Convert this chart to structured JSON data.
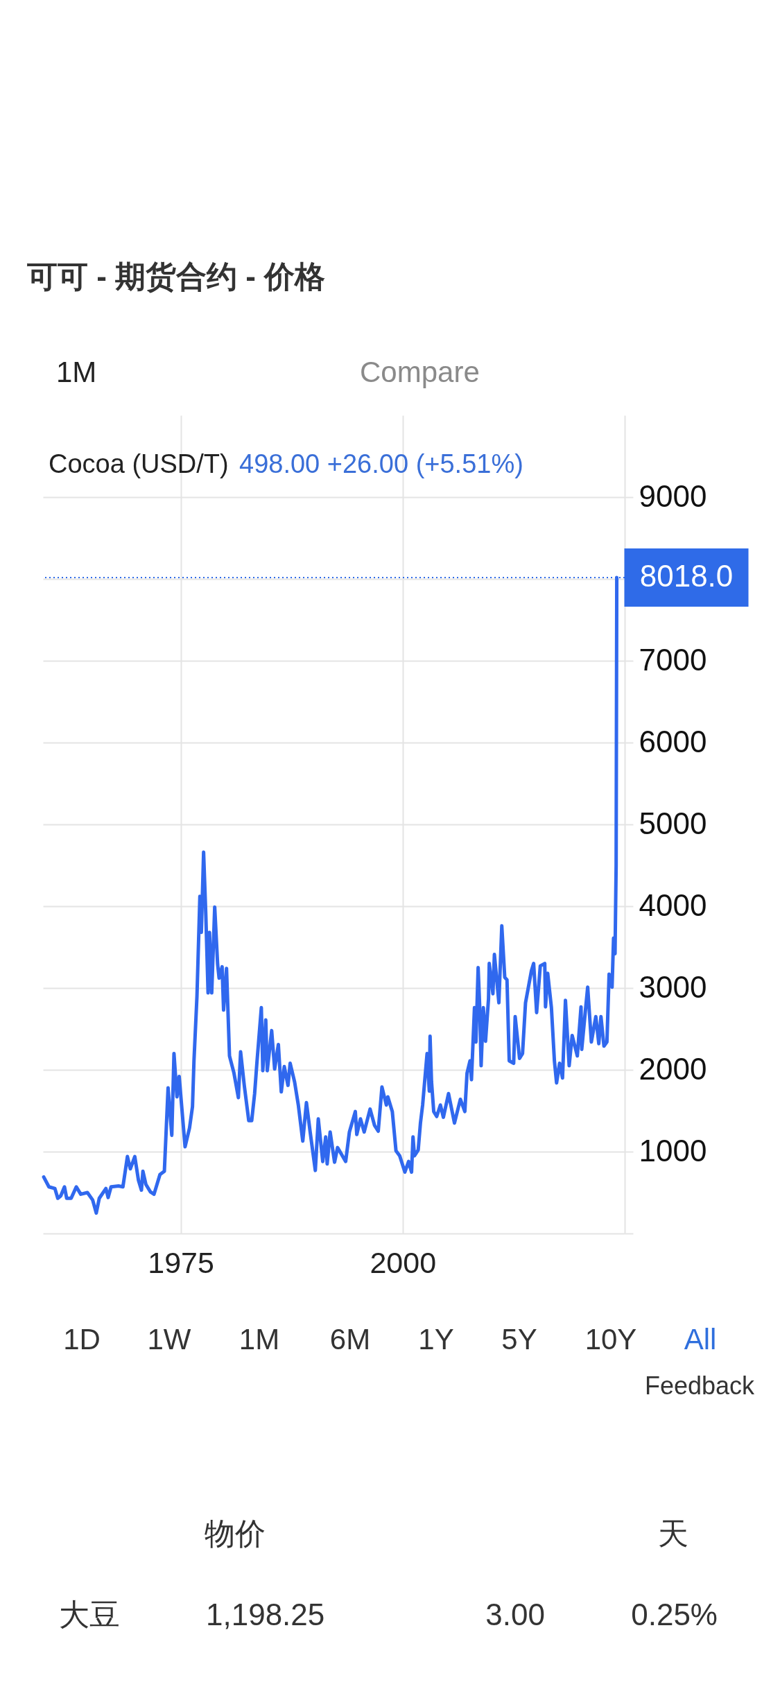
{
  "chart_data": [
    {
      "type": "line",
      "title": "可可 - 期货合约 - 价格",
      "subtitle": "Cocoa (USD/T)",
      "annotations": [
        "498.00 +26.00 (+5.51%)",
        "1M",
        "Compare",
        "1D",
        "1W",
        "1M",
        "6M",
        "1Y",
        "5Y",
        "10Y",
        "All",
        "Feedback"
      ],
      "x": [
        "1959-08",
        "1960-03",
        "1960-11",
        "1961-03",
        "1961-07",
        "1961-12",
        "1962-03",
        "1962-09",
        "1963-04",
        "1963-10",
        "1964-07",
        "1965-02",
        "1965-07",
        "1965-11",
        "1966-08",
        "1966-11",
        "1967-03",
        "1968-01",
        "1968-07",
        "1969-01",
        "1969-05",
        "1969-11",
        "1970-04",
        "1970-08",
        "1970-10",
        "1971-02",
        "1971-08",
        "1972-01",
        "1972-09",
        "1973-03",
        "1973-08",
        "1974-01",
        "1974-04",
        "1974-08",
        "1974-11",
        "1975-07",
        "1976-01",
        "1976-05",
        "1976-07",
        "1976-11",
        "1977-03",
        "1977-05",
        "1977-08",
        "1977-11",
        "1978-02",
        "1978-04",
        "1978-07",
        "1978-11",
        "1979-03",
        "1979-05",
        "1979-09",
        "1979-11",
        "1980-03",
        "1980-07",
        "1981-01",
        "1981-07",
        "1981-10",
        "1982-03",
        "1982-09",
        "1983-01",
        "1983-05",
        "1983-08",
        "1984-02",
        "1984-04",
        "1984-08",
        "1984-10",
        "1985-04",
        "1985-08",
        "1986-01",
        "1986-05",
        "1986-09",
        "1987-02",
        "1987-05",
        "1987-11",
        "1988-04",
        "1988-10",
        "1989-03",
        "1989-08",
        "1990-03",
        "1990-07",
        "1991-01",
        "1991-05",
        "1991-07",
        "1991-11",
        "1992-05",
        "1992-09",
        "1993-08",
        "1994-01",
        "1994-09",
        "1994-11",
        "1995-04",
        "1995-09",
        "1996-05",
        "1996-11",
        "1997-04",
        "1997-09",
        "1998-03",
        "1998-05",
        "1998-11",
        "1999-04",
        "1999-09",
        "2000-04",
        "2000-09",
        "2001-01",
        "2001-03",
        "2001-05",
        "2001-10",
        "2002-01",
        "2002-04",
        "2002-10",
        "2003-01",
        "2003-02",
        "2003-04",
        "2003-07",
        "2003-11",
        "2004-04",
        "2004-08",
        "2005-03",
        "2005-11",
        "2006-07",
        "2007-01",
        "2007-04",
        "2007-08",
        "2007-10",
        "2008-02",
        "2008-04",
        "2008-07",
        "2008-09",
        "2008-11",
        "2009-02",
        "2009-05",
        "2009-09",
        "2009-10",
        "2010-03",
        "2010-05",
        "2010-11",
        "2011-03",
        "2011-07",
        "2011-10",
        "2012-01",
        "2012-07",
        "2012-09",
        "2013-03",
        "2013-07",
        "2013-11",
        "2014-07",
        "2014-10",
        "2015-02",
        "2015-07",
        "2016-01",
        "2016-02",
        "2016-05",
        "2016-10",
        "2017-02",
        "2017-05",
        "2017-09",
        "2018-01",
        "2018-05",
        "2018-10",
        "2019-02",
        "2019-09",
        "2020-02",
        "2020-03",
        "2020-08",
        "2020-11",
        "2021-04",
        "2021-10",
        "2022-02",
        "2022-05",
        "2022-09",
        "2023-01",
        "2023-04",
        "2023-08",
        "2023-10",
        "2023-12",
        "2024-01-15",
        "2024-02-10"
      ],
      "series": [
        {
          "color": "#3068ee",
          "values": [
            690,
            570,
            550,
            430,
            460,
            570,
            430,
            430,
            570,
            480,
            500,
            410,
            250,
            430,
            550,
            440,
            570,
            580,
            570,
            940,
            790,
            940,
            650,
            530,
            760,
            600,
            510,
            480,
            720,
            760,
            1780,
            1200,
            2200,
            1670,
            1920,
            1060,
            1290,
            1550,
            2110,
            2900,
            4120,
            3680,
            4660,
            3890,
            2940,
            3680,
            2940,
            3990,
            3290,
            3120,
            3260,
            2730,
            3240,
            2170,
            1960,
            1660,
            2220,
            1810,
            1380,
            1380,
            1710,
            2080,
            2760,
            1990,
            2610,
            1990,
            2480,
            2010,
            2310,
            1730,
            2040,
            1810,
            2080,
            1850,
            1570,
            1130,
            1600,
            1240,
            770,
            1400,
            880,
            1180,
            850,
            1240,
            870,
            1050,
            880,
            1240,
            1490,
            1210,
            1400,
            1240,
            1520,
            1320,
            1250,
            1790,
            1570,
            1670,
            1490,
            1010,
            950,
            750,
            880,
            750,
            1180,
            950,
            1020,
            1350,
            1570,
            2200,
            1740,
            2410,
            1860,
            1490,
            1430,
            1570,
            1420,
            1710,
            1350,
            1640,
            1490,
            1960,
            2110,
            1880,
            2760,
            2340,
            3250,
            2790,
            2050,
            2760,
            2350,
            2870,
            3300,
            2930,
            3410,
            2820,
            3760,
            3130,
            3100,
            2110,
            2080,
            2650,
            2140,
            2200,
            2820,
            3210,
            3300,
            2700,
            3270,
            3300,
            2770,
            3180,
            2760,
            2110,
            1840,
            2080,
            1900,
            2850,
            2050,
            2420,
            2170,
            2770,
            2250,
            2730,
            3010,
            2340,
            2650,
            2320,
            2650,
            2290,
            2340,
            3170,
            3010,
            3610,
            3420,
            4500,
            8018
          ]
        }
      ],
      "xlim": [
        "1959-07",
        "2025-01"
      ],
      "xticks": [
        "1975",
        "2000",
        {
          "value": "2025",
          "label": null
        }
      ],
      "ylim": [
        0,
        10000
      ],
      "yticks": [
        {
          "value": 0,
          "label": null
        },
        1000,
        2000,
        3000,
        4000,
        5000,
        6000,
        7000,
        {
          "value": 8000,
          "label": null
        },
        9000
      ],
      "ref_lines": [
        {
          "axis": "y",
          "value": 8018,
          "label": "8018.0",
          "color": "#2f6be8",
          "line_style": "dotted"
        }
      ],
      "grid": true,
      "marker": "none",
      "line_style": "solid"
    },
    {
      "type": "other",
      "annotations": [
        "物价",
        "天",
        "大豆",
        "1,198.25",
        "3.00",
        "0.25%"
      ]
    }
  ]
}
